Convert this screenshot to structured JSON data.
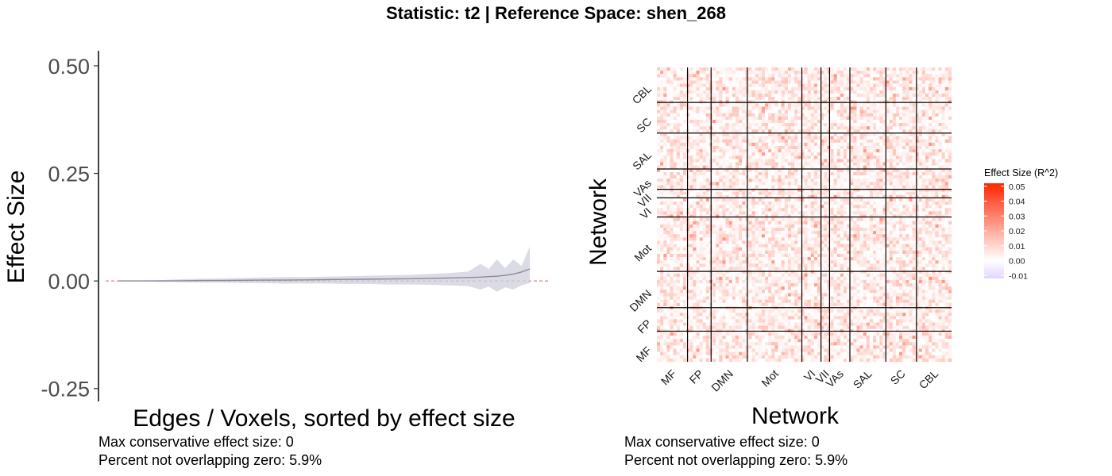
{
  "title": "Statistic: t2   |  Reference Space: shen_268",
  "chart_data": [
    {
      "type": "line",
      "xlabel": "Edges / Voxels, sorted by effect size",
      "ylabel": "Effect Size",
      "ylim": [
        -0.28,
        0.535
      ],
      "yticks": [
        "0.50",
        "0.25",
        "0.00",
        "-0.25"
      ],
      "ytick_values": [
        0.5,
        0.25,
        0.0,
        -0.25
      ],
      "reference_line": 0,
      "x": [
        0,
        0.05,
        0.1,
        0.15,
        0.2,
        0.25,
        0.3,
        0.35,
        0.4,
        0.45,
        0.5,
        0.55,
        0.6,
        0.65,
        0.7,
        0.75,
        0.8,
        0.85,
        0.88,
        0.9,
        0.92,
        0.94,
        0.96,
        0.98,
        1.0
      ],
      "series": [
        {
          "values": [
            0,
            0,
            0,
            0.0005,
            0.001,
            0.001,
            0.0015,
            0.002,
            0.002,
            0.0025,
            0.003,
            0.0035,
            0.004,
            0.0045,
            0.005,
            0.006,
            0.007,
            0.008,
            0.009,
            0.01,
            0.011,
            0.013,
            0.016,
            0.021,
            0.028
          ],
          "ci_upper": [
            0,
            0.001,
            0.002,
            0.004,
            0.005,
            0.006,
            0.007,
            0.008,
            0.009,
            0.009,
            0.01,
            0.011,
            0.012,
            0.013,
            0.014,
            0.016,
            0.018,
            0.022,
            0.04,
            0.028,
            0.05,
            0.03,
            0.05,
            0.035,
            0.08
          ],
          "ci_lower": [
            0,
            -0.001,
            -0.002,
            -0.003,
            -0.004,
            -0.004,
            -0.005,
            -0.005,
            -0.006,
            -0.006,
            -0.006,
            -0.007,
            -0.007,
            -0.008,
            -0.008,
            -0.009,
            -0.01,
            -0.012,
            -0.02,
            -0.013,
            -0.025,
            -0.015,
            -0.02,
            -0.01,
            -0.005
          ]
        }
      ],
      "caption": [
        "Max conservative effect size: 0",
        "Percent not overlapping zero: 5.9%"
      ]
    },
    {
      "type": "heatmap",
      "xlabel": "Network",
      "ylabel": "Network",
      "networks": [
        "MF",
        "FP",
        "DMN",
        "Mot",
        "VI",
        "VII",
        "VAs",
        "SAL",
        "SC",
        "CBL"
      ],
      "legend": {
        "title": "Effect Size (R^2)",
        "ticks": [
          "0.05",
          "0.04",
          "0.03",
          "0.02",
          "0.01",
          "0.00",
          "-0.01"
        ],
        "tick_values": [
          0.05,
          0.04,
          0.03,
          0.02,
          0.01,
          0.0,
          -0.01
        ],
        "range": [
          -0.012,
          0.052
        ],
        "colors": {
          "high": "#ff2600",
          "mid": "#ffffff",
          "low": "#e3d5ff"
        }
      },
      "caption": [
        "Max conservative effect size: 0",
        "Percent not overlapping zero: 5.9%"
      ]
    }
  ]
}
